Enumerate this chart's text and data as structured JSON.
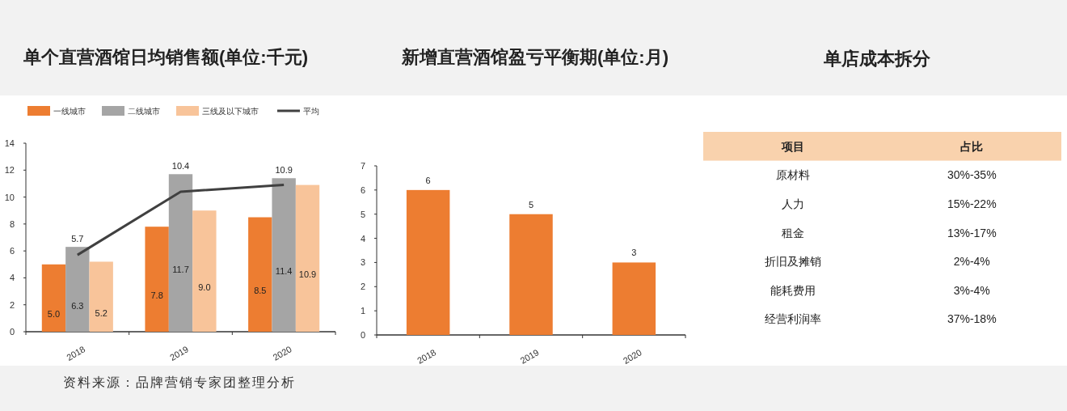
{
  "chart_data": [
    {
      "type": "bar",
      "title": "单个直营酒馆日均销售额(单位:千元)",
      "categories": [
        "2018",
        "2019",
        "2020"
      ],
      "series": [
        {
          "name": "一线城市",
          "type": "bar",
          "color": "#ed7d31",
          "values": [
            5.0,
            7.8,
            8.5
          ],
          "value_labels": [
            "5.0",
            "7.8",
            "8.5"
          ]
        },
        {
          "name": "二线城市",
          "type": "bar",
          "color": "#a5a5a5",
          "values": [
            6.3,
            11.7,
            11.4
          ]
        },
        {
          "name": "三线及以下城市",
          "type": "bar",
          "color": "#f8c49a",
          "values": [
            5.2,
            9.0,
            10.9
          ],
          "value_labels": [
            "5.2",
            "9.0",
            "10.9"
          ]
        },
        {
          "name": "平均",
          "type": "line",
          "color": "#404040",
          "values": [
            5.7,
            10.4,
            10.9
          ]
        }
      ],
      "ylim": [
        0,
        14
      ],
      "yticks": [
        0,
        2,
        4,
        6,
        8,
        10,
        12,
        14
      ],
      "legend": "top",
      "data_labels": true,
      "grid": false,
      "annotations": [
        "资料来源：品牌营销专家团整理分析"
      ]
    },
    {
      "type": "bar",
      "title": "新增直营酒馆盈亏平衡期(单位:月)",
      "categories": [
        "2018",
        "2019",
        "2020"
      ],
      "values": [
        6,
        5,
        3
      ],
      "color": "#ed7d31",
      "ylim": [
        0,
        7
      ],
      "yticks": [
        0,
        1,
        2,
        3,
        4,
        5,
        6,
        7
      ],
      "data_labels": true,
      "grid": false
    },
    {
      "type": "other",
      "title": "单店成本拆分",
      "annotations": [
        "项目",
        "占比",
        "原材料",
        "30%-35%",
        "人力",
        "15%-22%",
        "租金",
        "13%-17%",
        "折旧及摊销",
        "2%-4%",
        "能耗费用",
        "3%-4%",
        "经营利润率",
        "37%-18%"
      ]
    }
  ]
}
